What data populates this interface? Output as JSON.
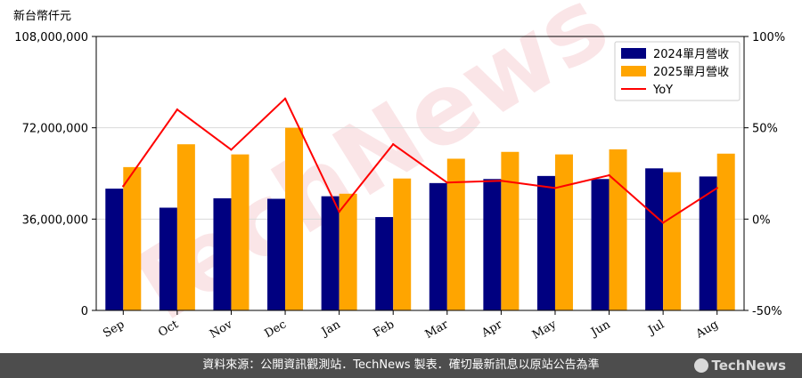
{
  "chart_data": {
    "type": "bar",
    "title": "",
    "ylabel": "新台幣仟元",
    "y2label": "",
    "categories": [
      "Sep",
      "Oct",
      "Nov",
      "Dec",
      "Jan",
      "Feb",
      "Mar",
      "Apr",
      "May",
      "Jun",
      "Jul",
      "Aug"
    ],
    "series": [
      {
        "name": "2024單月營收",
        "type": "bar",
        "color": "#000080",
        "values": [
          48000000,
          40500000,
          44200000,
          44000000,
          45000000,
          36800000,
          50200000,
          51800000,
          53000000,
          51800000,
          56000000,
          52800000
        ]
      },
      {
        "name": "2025單月營收",
        "type": "bar",
        "color": "#FFA500",
        "values": [
          56500000,
          65500000,
          61500000,
          72000000,
          46000000,
          52000000,
          59800000,
          62500000,
          61500000,
          63500000,
          54500000,
          61800000
        ]
      },
      {
        "name": "YoY",
        "type": "line",
        "axis": "right",
        "color": "#ff0000",
        "values": [
          18,
          60,
          38,
          66,
          4,
          41,
          20,
          21,
          17,
          24,
          -2,
          17
        ]
      }
    ],
    "ylim": [
      0,
      108000000
    ],
    "y_ticks": [
      "0",
      "36,000,000",
      "72,000,000",
      "108,000,000"
    ],
    "y2lim": [
      -50,
      100
    ],
    "y2_ticks": [
      "-50%",
      "0%",
      "50%",
      "100%"
    ],
    "grid": true,
    "legend_position": "top-right",
    "watermark": "TechNews"
  },
  "footer": {
    "source_text": "資料來源：公開資訊觀測站．TechNews 製表．確切最新訊息以原站公告為準",
    "logo_text": "TechNews"
  }
}
